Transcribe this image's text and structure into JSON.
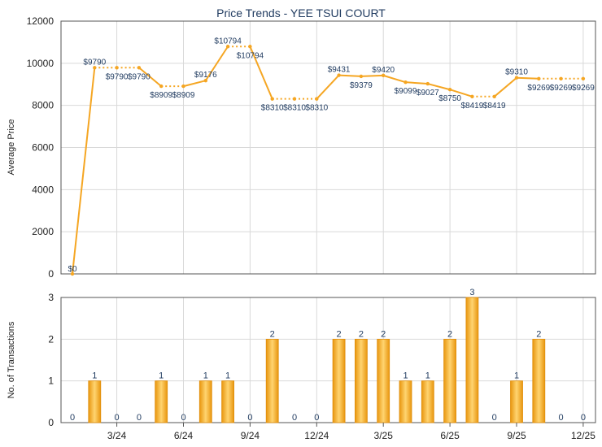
{
  "chart_data": [
    {
      "type": "line",
      "title": "Price Trends - YEE TSUI COURT",
      "ylabel": "Average Price",
      "ylim": [
        0,
        12000
      ],
      "yticks": [
        0,
        2000,
        4000,
        6000,
        8000,
        10000,
        12000
      ],
      "color": "#f5a623",
      "points": [
        {
          "v": 0,
          "label": "$0"
        },
        {
          "v": 9790,
          "label": "$9790"
        },
        {
          "v": 9790,
          "label": "$9790"
        },
        {
          "v": 9790,
          "label": "$9790"
        },
        {
          "v": 8909,
          "label": "$8909"
        },
        {
          "v": 8909,
          "label": "$8909"
        },
        {
          "v": 9176,
          "label": "$9176"
        },
        {
          "v": 10794,
          "label": "$10794"
        },
        {
          "v": 10794,
          "label": "$10794"
        },
        {
          "v": 8310,
          "label": "$8310"
        },
        {
          "v": 8310,
          "label": "$8310"
        },
        {
          "v": 8310,
          "label": "$8310"
        },
        {
          "v": 9431,
          "label": "$9431"
        },
        {
          "v": 9379,
          "label": "$9379"
        },
        {
          "v": 9420,
          "label": "$9420"
        },
        {
          "v": 9099,
          "label": "$9099"
        },
        {
          "v": 9027,
          "label": "$9027"
        },
        {
          "v": 8750,
          "label": "$8750"
        },
        {
          "v": 8419,
          "label": "$8419"
        },
        {
          "v": 8419,
          "label": "$8419"
        },
        {
          "v": 9310,
          "label": "$9310"
        },
        {
          "v": 9269,
          "label": "$9269"
        },
        {
          "v": 9269,
          "label": "$9269"
        },
        {
          "v": 9269,
          "label": "$9269"
        }
      ]
    },
    {
      "type": "bar",
      "ylabel": "No. of Transactions",
      "ylim": [
        0,
        3
      ],
      "yticks": [
        0,
        1,
        2,
        3
      ],
      "color": "#f5a623",
      "values": [
        0,
        1,
        0,
        0,
        1,
        0,
        1,
        1,
        0,
        2,
        0,
        0,
        2,
        2,
        2,
        1,
        1,
        2,
        3,
        0,
        1,
        2,
        0,
        0
      ],
      "xticks": [
        {
          "index": 2,
          "label": "3/24"
        },
        {
          "index": 5,
          "label": "6/24"
        },
        {
          "index": 8,
          "label": "9/24"
        },
        {
          "index": 11,
          "label": "12/24"
        },
        {
          "index": 14,
          "label": "3/25"
        },
        {
          "index": 17,
          "label": "6/25"
        },
        {
          "index": 20,
          "label": "9/25"
        },
        {
          "index": 23,
          "label": "12/25"
        }
      ]
    }
  ]
}
